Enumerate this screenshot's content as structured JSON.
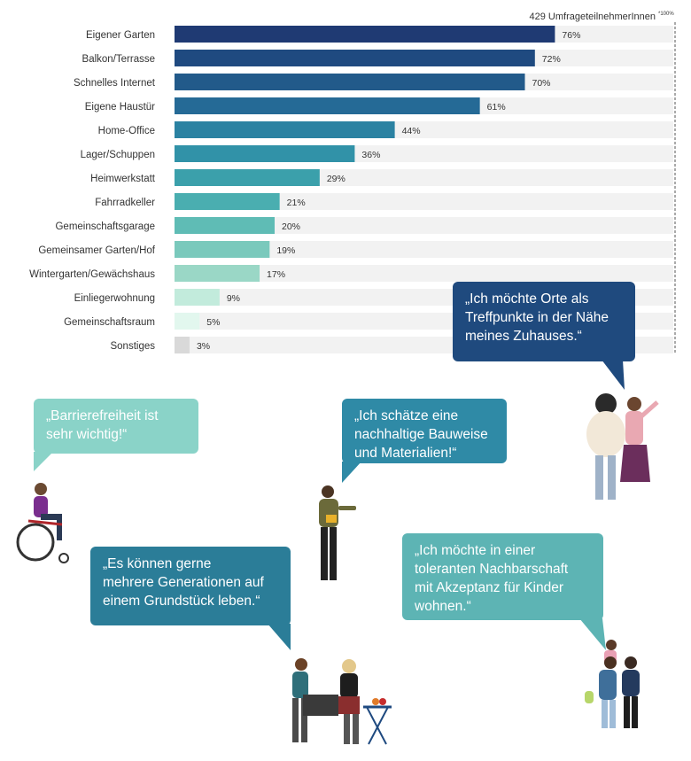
{
  "chart_data": {
    "type": "bar",
    "orientation": "horizontal",
    "title": "",
    "note": "429 UmfrageteilnehmerInnen",
    "axis_max_label": "*100%",
    "xlim": [
      0,
      100
    ],
    "categories": [
      "Eigener Garten",
      "Balkon/Terrasse",
      "Schnelles Internet",
      "Eigene Haustür",
      "Home-Office",
      "Lager/Schuppen",
      "Heimwerkstatt",
      "Fahrradkeller",
      "Gemeinschaftsgarage",
      "Gemeinsamer Garten/Hof",
      "Wintergarten/Gewächshaus",
      "Einliegerwohnung",
      "Gemeinschaftsraum",
      "Sonstiges"
    ],
    "values": [
      76,
      72,
      70,
      61,
      44,
      36,
      29,
      21,
      20,
      19,
      17,
      9,
      5,
      3
    ],
    "value_labels": [
      "76%",
      "72%",
      "70%",
      "61%",
      "44%",
      "36%",
      "29%",
      "21%",
      "20%",
      "19%",
      "17%",
      "9%",
      "5%",
      "3%"
    ],
    "colors": [
      "#1f3a73",
      "#1f4a80",
      "#225a8a",
      "#256a96",
      "#2b82a2",
      "#3192a8",
      "#3ba0ab",
      "#4aaeb0",
      "#5fbcb5",
      "#7ac9bc",
      "#9ad7c6",
      "#c2ebdc",
      "#e2f7ee",
      "#d9d9d9"
    ],
    "track_color": "#f2f2f2"
  },
  "quotes": [
    {
      "text": "„Ich möchte Orte als\nTreffpunkte in der Nähe\nmeines Zuhauses.“",
      "color": "#1f4a7e"
    },
    {
      "text": "„Barrierefreiheit ist\nsehr wichtig!“",
      "color": "#8ad3c8"
    },
    {
      "text": "„Ich schätze eine\nnachhaltige Bauweise\nund Materialien!“",
      "color": "#2f8aa6"
    },
    {
      "text": "„Es können gerne\nmehrere Generationen auf\neinem Grundstück leben.“",
      "color": "#2b7d98"
    },
    {
      "text": "„Ich möchte in einer\ntoleranten Nachbarschaft\nmit Akzeptanz für Kinder\nwohnen.“",
      "color": "#5db4b4"
    }
  ]
}
